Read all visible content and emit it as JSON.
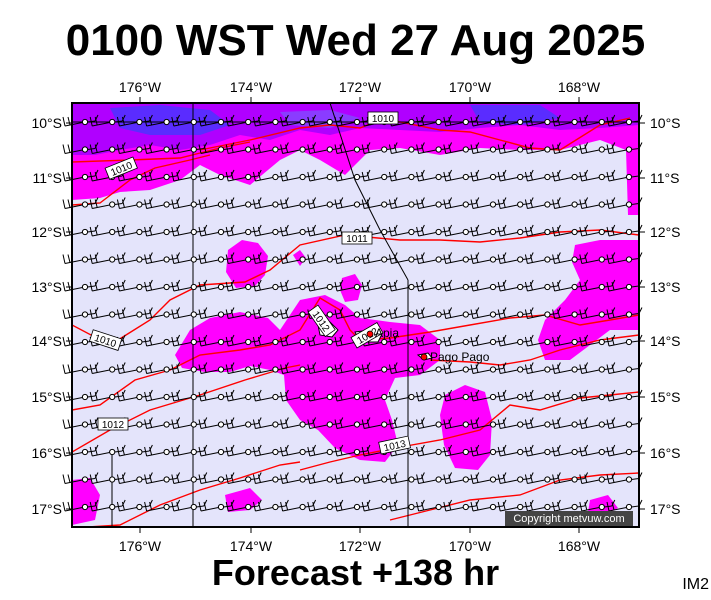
{
  "title": "0100 WST Wed 27 Aug 2025",
  "subtitle": "Forecast +138 hr",
  "image_id": "IM2",
  "copyright": "Copyright metvuw.com",
  "longitudes": [
    "176°W",
    "174°W",
    "172°W",
    "170°W",
    "168°W"
  ],
  "latitudes": [
    "10°S",
    "11°S",
    "12°S",
    "13°S",
    "14°S",
    "15°S",
    "16°S",
    "17°S"
  ],
  "places": [
    "Apia",
    "Pago Pago"
  ],
  "isobars": [
    "1010",
    "1010",
    "1011",
    "1010",
    "1012",
    "1012",
    "1012",
    "1013"
  ],
  "colors": {
    "sea": "#e4e4fb",
    "rain_light": "#ff00ff",
    "rain_mid": "#b000ff",
    "rain_heavy": "#5a2cff",
    "isobar": "#ff0000",
    "frame": "#000000"
  }
}
